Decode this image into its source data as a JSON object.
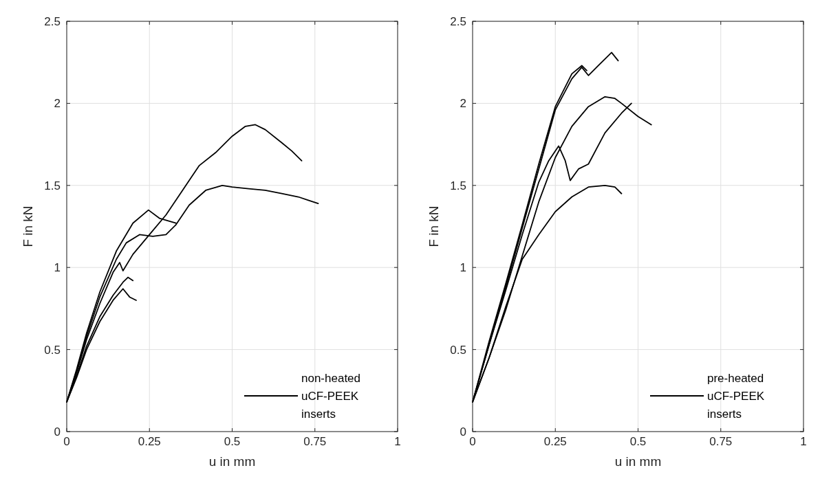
{
  "chart_data": [
    {
      "type": "line",
      "xlabel": "u in mm",
      "ylabel": "F in kN",
      "xlim": [
        0,
        1
      ],
      "xticks": [
        0,
        0.25,
        0.5,
        0.75,
        1
      ],
      "ylim": [
        0,
        2.5
      ],
      "yticks": [
        0,
        0.5,
        1,
        1.5,
        2,
        2.5
      ],
      "grid": true,
      "legend": "bottom right",
      "series": [
        {
          "name": "non-heated uCF-PEEK inserts",
          "color": "#000000",
          "x": [
            0,
            0.03,
            0.06,
            0.1,
            0.14,
            0.16,
            0.17,
            0.2,
            0.25,
            0.3,
            0.35,
            0.4,
            0.45,
            0.5,
            0.54,
            0.57,
            0.6,
            0.65,
            0.68,
            0.71
          ],
          "values": [
            0.18,
            0.36,
            0.56,
            0.78,
            0.97,
            1.03,
            0.98,
            1.08,
            1.2,
            1.32,
            1.47,
            1.62,
            1.7,
            1.8,
            1.86,
            1.87,
            1.84,
            1.76,
            1.71,
            1.65
          ]
        },
        {
          "color": "#000000",
          "x": [
            0,
            0.03,
            0.06,
            0.1,
            0.15,
            0.2,
            0.247,
            0.28,
            0.33
          ],
          "values": [
            0.18,
            0.38,
            0.6,
            0.85,
            1.1,
            1.27,
            1.35,
            1.3,
            1.27
          ]
        },
        {
          "color": "#000000",
          "x": [
            0,
            0.03,
            0.06,
            0.1,
            0.15,
            0.18,
            0.22,
            0.26,
            0.3,
            0.33,
            0.37,
            0.42,
            0.47,
            0.5,
            0.55,
            0.6,
            0.65,
            0.7,
            0.73,
            0.76
          ],
          "values": [
            0.18,
            0.37,
            0.58,
            0.82,
            1.05,
            1.15,
            1.2,
            1.19,
            1.2,
            1.26,
            1.38,
            1.47,
            1.5,
            1.49,
            1.48,
            1.47,
            1.45,
            1.43,
            1.41,
            1.39
          ]
        },
        {
          "color": "#000000",
          "x": [
            0,
            0.03,
            0.06,
            0.1,
            0.14,
            0.17,
            0.185,
            0.2
          ],
          "values": [
            0.18,
            0.34,
            0.52,
            0.7,
            0.83,
            0.91,
            0.94,
            0.92
          ]
        },
        {
          "color": "#000000",
          "x": [
            0,
            0.03,
            0.06,
            0.1,
            0.14,
            0.17,
            0.19,
            0.21
          ],
          "values": [
            0.18,
            0.33,
            0.5,
            0.67,
            0.8,
            0.87,
            0.82,
            0.8
          ]
        }
      ]
    },
    {
      "type": "line",
      "xlabel": "u in mm",
      "ylabel": "F in kN",
      "xlim": [
        0,
        1
      ],
      "xticks": [
        0,
        0.25,
        0.5,
        0.75,
        1
      ],
      "ylim": [
        0,
        2.5
      ],
      "yticks": [
        0,
        0.5,
        1,
        1.5,
        2,
        2.5
      ],
      "grid": true,
      "legend": "bottom right",
      "series": [
        {
          "name": "pre-heated uCF-PEEK inserts",
          "color": "#000000",
          "x": [
            0,
            0.05,
            0.1,
            0.15,
            0.2,
            0.25,
            0.3,
            0.33,
            0.345
          ],
          "values": [
            0.18,
            0.55,
            0.9,
            1.26,
            1.63,
            1.98,
            2.18,
            2.23,
            2.2
          ]
        },
        {
          "color": "#000000",
          "x": [
            0,
            0.05,
            0.1,
            0.15,
            0.2,
            0.25,
            0.3,
            0.33,
            0.35,
            0.38,
            0.4,
            0.42,
            0.44
          ],
          "values": [
            0.18,
            0.53,
            0.88,
            1.24,
            1.6,
            1.96,
            2.15,
            2.22,
            2.17,
            2.23,
            2.27,
            2.31,
            2.26
          ]
        },
        {
          "color": "#000000",
          "x": [
            0,
            0.05,
            0.1,
            0.15,
            0.2,
            0.25,
            0.3,
            0.35,
            0.4,
            0.43,
            0.45,
            0.5,
            0.54
          ],
          "values": [
            0.18,
            0.45,
            0.74,
            1.07,
            1.4,
            1.67,
            1.86,
            1.98,
            2.04,
            2.03,
            2,
            1.92,
            1.87
          ]
        },
        {
          "color": "#000000",
          "x": [
            0,
            0.05,
            0.1,
            0.15,
            0.2,
            0.23,
            0.26,
            0.28,
            0.295,
            0.32,
            0.35,
            0.4,
            0.45,
            0.48
          ],
          "values": [
            0.18,
            0.53,
            0.86,
            1.2,
            1.52,
            1.65,
            1.74,
            1.65,
            1.53,
            1.6,
            1.63,
            1.82,
            1.94,
            2
          ]
        },
        {
          "color": "#000000",
          "x": [
            0,
            0.05,
            0.1,
            0.15,
            0.2,
            0.25,
            0.3,
            0.35,
            0.4,
            0.43,
            0.45
          ],
          "values": [
            0.18,
            0.45,
            0.76,
            1.05,
            1.2,
            1.34,
            1.43,
            1.49,
            1.5,
            1.49,
            1.45
          ]
        }
      ]
    }
  ]
}
